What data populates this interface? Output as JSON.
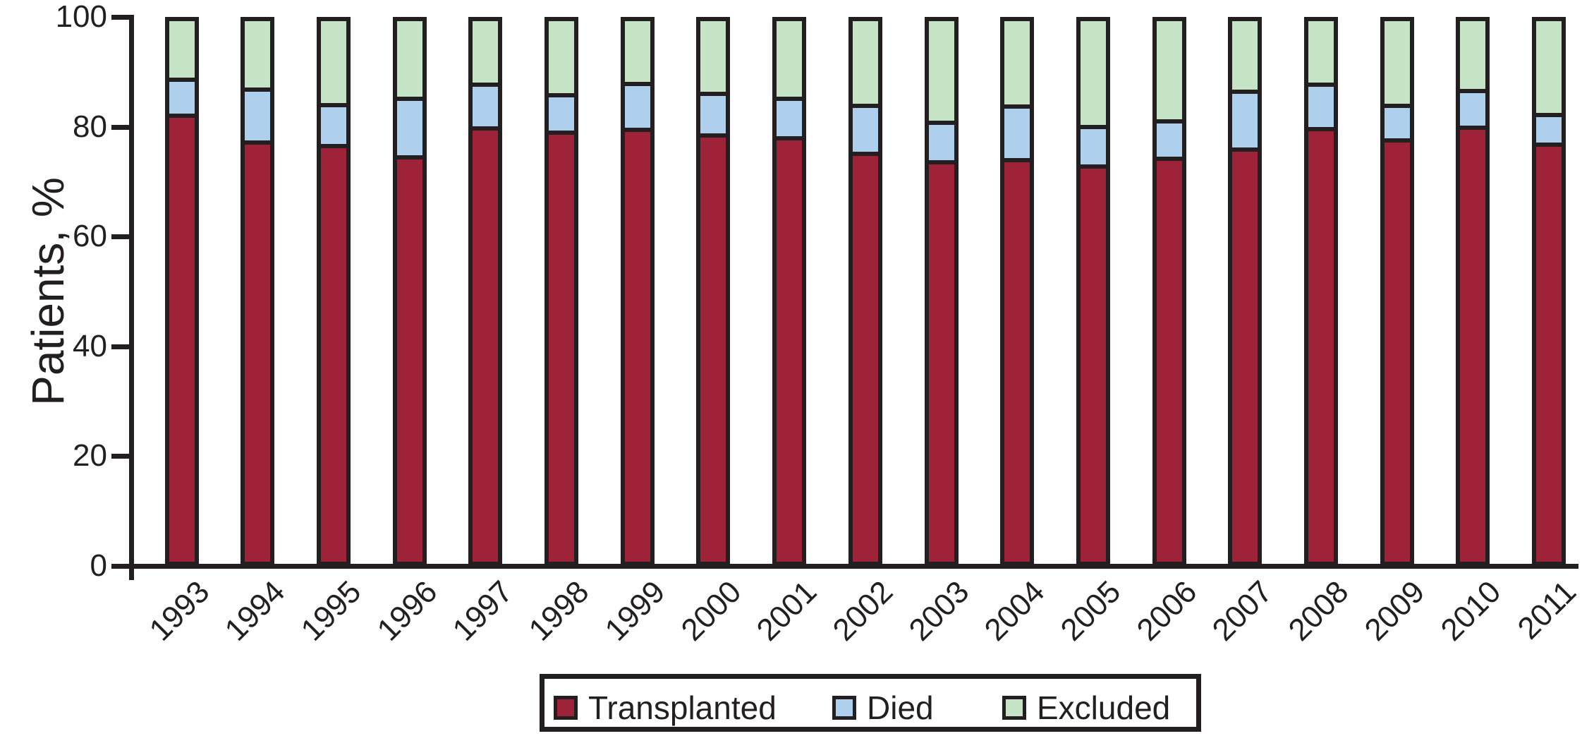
{
  "figure": {
    "background": "#ffffff",
    "ink_color": "#231f20"
  },
  "chart_data": {
    "type": "bar",
    "stacked": true,
    "title": "",
    "xlabel": "",
    "ylabel": "Patients, %",
    "ylim": [
      0,
      100
    ],
    "yticks": [
      0,
      20,
      40,
      60,
      80,
      100
    ],
    "grid": false,
    "categories": [
      "1993",
      "1994",
      "1995",
      "1996",
      "1997",
      "1998",
      "1999",
      "2000",
      "2001",
      "2002",
      "2003",
      "2004",
      "2005",
      "2006",
      "2007",
      "2008",
      "2009",
      "2010",
      "2011"
    ],
    "series": [
      {
        "name": "Transplanted",
        "color": "#9e2238",
        "values": [
          82.1,
          77.2,
          76.5,
          74.4,
          79.8,
          79.0,
          79.5,
          78.4,
          77.9,
          75.1,
          73.5,
          73.9,
          72.7,
          74.2,
          75.9,
          79.6,
          77.5,
          79.9,
          76.7
        ]
      },
      {
        "name": "Died",
        "color": "#aed0ec",
        "values": [
          6.7,
          9.7,
          7.6,
          10.9,
          8.0,
          6.9,
          8.5,
          7.7,
          7.3,
          8.9,
          7.3,
          9.9,
          7.3,
          6.9,
          10.7,
          8.2,
          6.5,
          6.8,
          5.6
        ]
      },
      {
        "name": "Excluded",
        "color": "#c5e3c5",
        "values": [
          11.2,
          13.1,
          15.9,
          14.7,
          12.2,
          14.1,
          12.0,
          13.9,
          14.8,
          16.0,
          19.2,
          16.2,
          20.0,
          18.9,
          13.4,
          12.2,
          16.0,
          13.3,
          17.7
        ]
      }
    ],
    "legend": {
      "position": "bottom",
      "entries": [
        "Transplanted",
        "Died",
        "Excluded"
      ]
    }
  },
  "legend_ui": {
    "transplanted_label": "Transplanted",
    "died_label": "Died",
    "excluded_label": "Excluded"
  },
  "ylabel_text": "Patients, %"
}
